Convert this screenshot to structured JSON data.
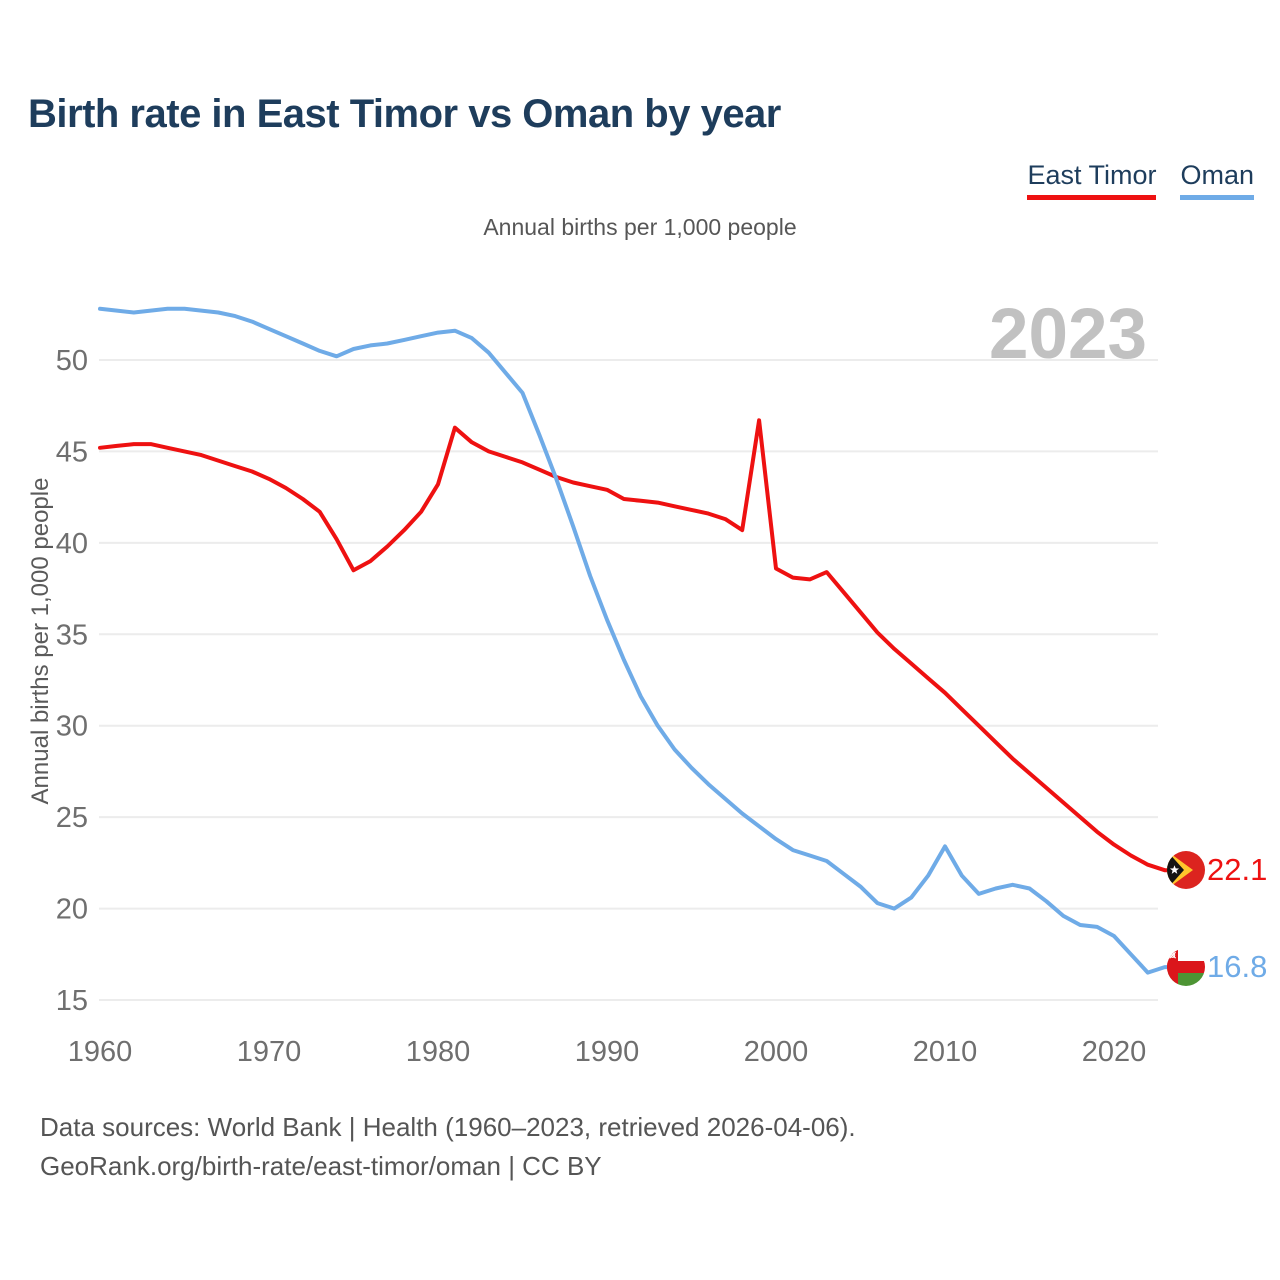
{
  "title": "Birth rate in East Timor vs Oman by year",
  "subtitle": "Annual births per 1,000 people",
  "watermark": "2023",
  "legend": [
    {
      "label": "East Timor",
      "color": "#ee1111"
    },
    {
      "label": "Oman",
      "color": "#6fabe7"
    }
  ],
  "footer": {
    "line1": "Data sources: World Bank | Health (1960–2023, retrieved 2026-04-06).",
    "line2": "GeoRank.org/birth-rate/east-timor/oman | CC BY"
  },
  "chart_data": {
    "type": "line",
    "title": "Birth rate in East Timor vs Oman by year",
    "ylabel": "Annual births per 1,000 people",
    "xlabel": "",
    "ylim": [
      15,
      53.5
    ],
    "yticks": [
      15,
      20,
      25,
      30,
      35,
      40,
      45,
      50
    ],
    "xticks": [
      1960,
      1970,
      1980,
      1990,
      2000,
      2010,
      2020
    ],
    "grid": true,
    "legend_position": "top-right",
    "x": [
      1960,
      1961,
      1962,
      1963,
      1964,
      1965,
      1966,
      1967,
      1968,
      1969,
      1970,
      1971,
      1972,
      1973,
      1974,
      1975,
      1976,
      1977,
      1978,
      1979,
      1980,
      1981,
      1982,
      1983,
      1984,
      1985,
      1986,
      1987,
      1988,
      1989,
      1990,
      1991,
      1992,
      1993,
      1994,
      1995,
      1996,
      1997,
      1998,
      1999,
      2000,
      2001,
      2002,
      2003,
      2004,
      2005,
      2006,
      2007,
      2008,
      2009,
      2010,
      2011,
      2012,
      2013,
      2014,
      2015,
      2016,
      2017,
      2018,
      2019,
      2020,
      2021,
      2022,
      2023
    ],
    "series": [
      {
        "name": "East Timor",
        "color": "#ee1111",
        "end_value": 22.1,
        "end_label": "22.1",
        "values": [
          45.2,
          45.3,
          45.4,
          45.4,
          45.2,
          45.0,
          44.8,
          44.5,
          44.2,
          43.9,
          43.5,
          43.0,
          42.4,
          41.7,
          40.2,
          38.5,
          39.0,
          39.8,
          40.7,
          41.7,
          43.2,
          46.3,
          45.5,
          45.0,
          44.7,
          44.4,
          44.0,
          43.6,
          43.3,
          43.1,
          42.9,
          42.4,
          42.3,
          42.2,
          42.0,
          41.8,
          41.6,
          41.3,
          40.7,
          46.7,
          38.6,
          38.1,
          38.0,
          38.4,
          37.3,
          36.2,
          35.1,
          34.2,
          33.4,
          32.6,
          31.8,
          30.9,
          30.0,
          29.1,
          28.2,
          27.4,
          26.6,
          25.8,
          25.0,
          24.2,
          23.5,
          22.9,
          22.4,
          22.1
        ]
      },
      {
        "name": "Oman",
        "color": "#6fabe7",
        "end_value": 16.8,
        "end_label": "16.8",
        "values": [
          52.8,
          52.7,
          52.6,
          52.7,
          52.8,
          52.8,
          52.7,
          52.6,
          52.4,
          52.1,
          51.7,
          51.3,
          50.9,
          50.5,
          50.2,
          50.6,
          50.8,
          50.9,
          51.1,
          51.3,
          51.5,
          51.6,
          51.2,
          50.4,
          49.3,
          48.2,
          45.9,
          43.5,
          40.9,
          38.2,
          35.8,
          33.6,
          31.6,
          30.0,
          28.7,
          27.7,
          26.8,
          26.0,
          25.2,
          24.5,
          23.8,
          23.2,
          22.9,
          22.6,
          21.9,
          21.2,
          20.3,
          20.0,
          20.6,
          21.8,
          23.4,
          21.8,
          20.8,
          21.1,
          21.3,
          21.1,
          20.4,
          19.6,
          19.1,
          19.0,
          18.5,
          17.5,
          16.5,
          16.8
        ]
      }
    ]
  }
}
